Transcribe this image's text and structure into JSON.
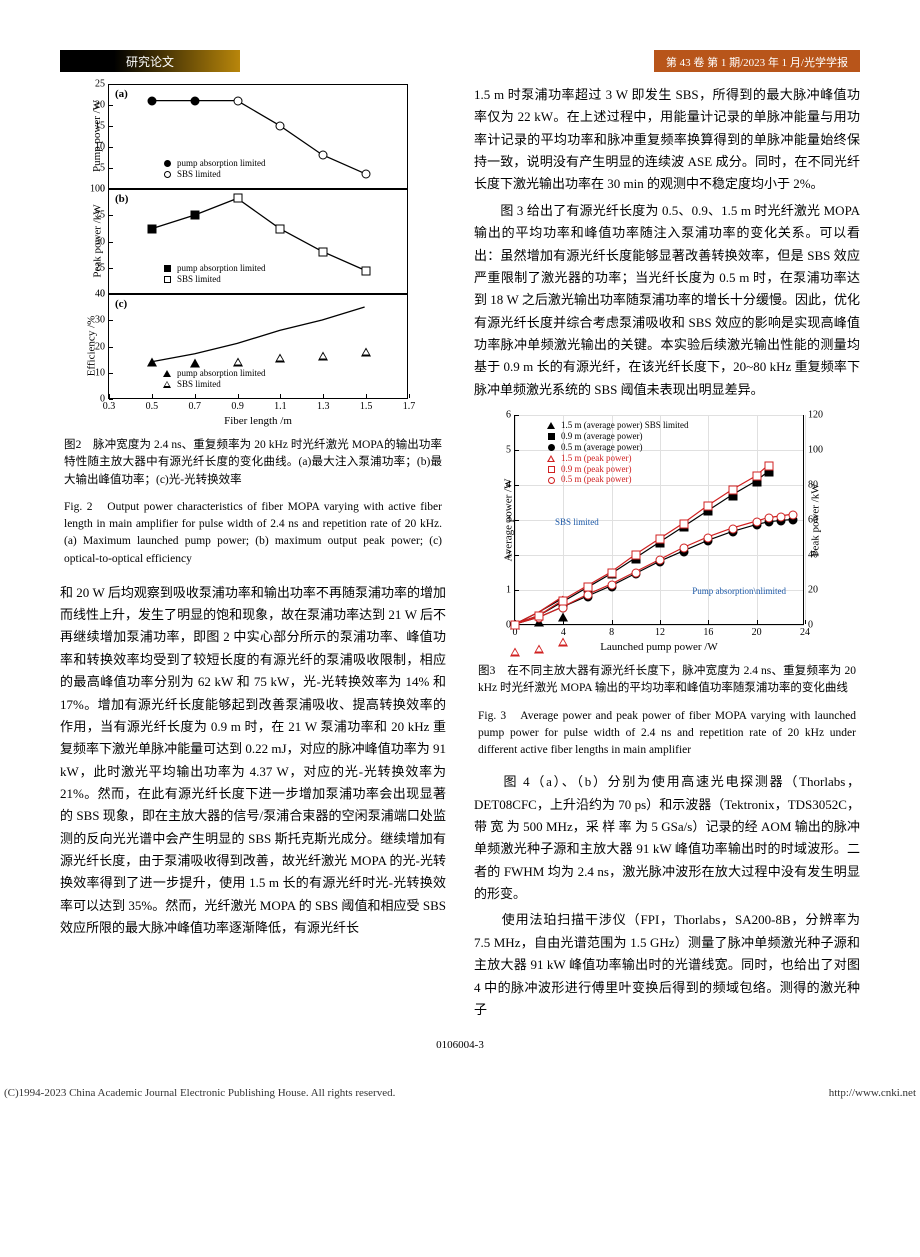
{
  "header": {
    "left": "研究论文",
    "right": "第 43 卷 第 1 期/2023 年 1 月/光学学报"
  },
  "fig2": {
    "xlabel": "Fiber length /m",
    "xlim": [
      0.3,
      1.7
    ],
    "xticks": [
      0.3,
      0.5,
      0.7,
      0.9,
      1.1,
      1.3,
      1.5,
      1.7
    ],
    "panelA": {
      "label": "(a)",
      "ylabel": "Pump power /W",
      "ylim": [
        0,
        25
      ],
      "yticks": [
        0,
        5,
        10,
        15,
        20,
        25
      ],
      "series1": {
        "label": "pump absorption limited",
        "type": "filled-circle",
        "x": [
          0.5,
          0.7
        ],
        "y": [
          21,
          21
        ]
      },
      "series2": {
        "label": "SBS limited",
        "type": "open-circle",
        "x": [
          0.9,
          1.1,
          1.3,
          1.5
        ],
        "y": [
          21,
          15,
          8,
          3.5
        ]
      }
    },
    "panelB": {
      "label": "(b)",
      "ylabel": "Peak power /kW",
      "ylim": [
        0,
        100
      ],
      "yticks": [
        0,
        25,
        50,
        75,
        100
      ],
      "series1": {
        "label": "pump absorption limited",
        "type": "filled-square",
        "x": [
          0.5,
          0.7
        ],
        "y": [
          62,
          75
        ]
      },
      "series2": {
        "label": "SBS limited",
        "type": "open-square",
        "x": [
          0.9,
          1.1,
          1.3,
          1.5
        ],
        "y": [
          91,
          62,
          40,
          22
        ]
      }
    },
    "panelC": {
      "label": "(c)",
      "ylabel": "Efficiency /%",
      "ylim": [
        0,
        40
      ],
      "yticks": [
        0,
        10,
        20,
        30,
        40
      ],
      "series1": {
        "label": "pump absorption limited",
        "type": "filled-triangle",
        "x": [
          0.5,
          0.7
        ],
        "y": [
          14,
          17
        ]
      },
      "series2": {
        "label": "SBS limited",
        "type": "open-triangle",
        "x": [
          0.9,
          1.1,
          1.3,
          1.5
        ],
        "y": [
          21,
          26,
          30,
          35
        ]
      }
    },
    "caption_cn": "图2　脉冲宽度为 2.4 ns、重复频率为 20 kHz 时光纤激光 MOPA的输出功率特性随主放大器中有源光纤长度的变化曲线。(a)最大注入泵浦功率；(b)最大输出峰值功率；(c)光-光转换效率",
    "caption_en": "Fig. 2　Output power characteristics of fiber MOPA varying with active fiber length in main amplifier for pulse width of 2.4 ns and repetition rate of 20 kHz. (a) Maximum launched pump power; (b) maximum output peak power; (c) optical-to-optical efficiency"
  },
  "fig3": {
    "xlabel": "Launched pump power /W",
    "ylabel": "Average power /W",
    "ylabel2": "Peak power /kW",
    "xlim": [
      0,
      24
    ],
    "xticks": [
      0,
      4,
      8,
      12,
      16,
      20,
      24
    ],
    "ylim": [
      0,
      6
    ],
    "yticks": [
      0,
      1,
      2,
      3,
      4,
      5,
      6
    ],
    "y2lim": [
      0,
      120
    ],
    "y2ticks": [
      0,
      20,
      40,
      60,
      80,
      100,
      120
    ],
    "legend": [
      {
        "label": "1.5 m (average power) SBS limited",
        "color": "#000",
        "marker": "tri-fill"
      },
      {
        "label": "0.9 m (average power)",
        "color": "#000",
        "marker": "sq-fill"
      },
      {
        "label": "0.5 m (average power)",
        "color": "#000",
        "marker": "circ-fill"
      },
      {
        "label": "1.5 m (peak power)",
        "color": "#d02020",
        "marker": "tri-open"
      },
      {
        "label": "0.9 m (peak power)",
        "color": "#d02020",
        "marker": "sq-open"
      },
      {
        "label": "0.5 m (peak power)",
        "color": "#d02020",
        "marker": "circ-open"
      }
    ],
    "annot": {
      "sbs": "SBS limited",
      "pump": "Pump absorption\\nlimited"
    },
    "data": {
      "x": [
        0,
        2,
        4,
        6,
        8,
        10,
        12,
        14,
        16,
        18,
        20,
        21,
        22,
        23
      ],
      "avg05": [
        0,
        0.2,
        0.5,
        0.8,
        1.1,
        1.45,
        1.8,
        2.1,
        2.4,
        2.65,
        2.85,
        2.93,
        2.97,
        3.0
      ],
      "avg09": [
        0,
        0.25,
        0.65,
        1.05,
        1.45,
        1.9,
        2.35,
        2.8,
        3.25,
        3.7,
        4.1,
        4.37
      ],
      "avg15": [
        0,
        0.35,
        0.75
      ],
      "peak05": [
        0,
        4,
        10,
        17,
        23,
        30,
        37,
        44,
        50,
        55,
        59,
        61,
        62,
        63
      ],
      "peak09": [
        0,
        5,
        14,
        22,
        30,
        40,
        49,
        58,
        68,
        77,
        85,
        91
      ],
      "peak15": [
        0,
        7,
        16
      ]
    },
    "caption_cn": "图3　在不同主放大器有源光纤长度下，脉冲宽度为 2.4 ns、重复频率为 20 kHz 时光纤激光 MOPA 输出的平均功率和峰值功率随泵浦功率的变化曲线",
    "caption_en": "Fig. 3　Average power and peak power of fiber MOPA varying with launched pump power for pulse width of 2.4 ns and repetition rate of 20 kHz under different active fiber lengths in main amplifier"
  },
  "col1_text": "和 20 W 后均观察到吸收泵浦功率和输出功率不再随泵浦功率的增加而线性上升，发生了明显的饱和现象，故在泵浦功率达到 21 W 后不再继续增加泵浦功率，即图 2 中实心部分所示的泵浦功率、峰值功率和转换效率均受到了较短长度的有源光纤的泵浦吸收限制，相应的最高峰值功率分别为 62 kW 和 75 kW，光-光转换效率为 14% 和 17%。增加有源光纤长度能够起到改善泵浦吸收、提高转换效率的作用，当有源光纤长度为 0.9 m 时，在 21 W 泵浦功率和 20 kHz 重复频率下激光单脉冲能量可达到 0.22 mJ，对应的脉冲峰值功率为 91 kW，此时激光平均输出功率为 4.37 W，对应的光-光转换效率为 21%。然而，在此有源光纤长度下进一步增加泵浦功率会出现显著的 SBS 现象，即在主放大器的信号/泵浦合束器的空闲泵浦端口处监测的反向光光谱中会产生明显的 SBS 斯托克斯光成分。继续增加有源光纤长度，由于泵浦吸收得到改善，故光纤激光 MOPA 的光-光转换效率得到了进一步提升，使用 1.5 m 长的有源光纤时光-光转换效率可以达到 35%。然而，光纤激光 MOPA 的 SBS 阈值和相应受 SBS 效应所限的最大脉冲峰值功率逐渐降低，有源光纤长",
  "col2_text1": "1.5 m 时泵浦功率超过 3 W 即发生 SBS，所得到的最大脉冲峰值功率仅为 22 kW。在上述过程中，用能量计记录的单脉冲能量与用功率计记录的平均功率和脉冲重复频率换算得到的单脉冲能量始终保持一致，说明没有产生明显的连续波 ASE 成分。同时，在不同光纤长度下激光输出功率在 30 min 的观测中不稳定度均小于 2%。",
  "col2_text2": "　　图 3 给出了有源光纤长度为 0.5、0.9、1.5 m 时光纤激光 MOPA 输出的平均功率和峰值功率随注入泵浦功率的变化关系。可以看出：虽然增加有源光纤长度能够显著改善转换效率，但是 SBS 效应严重限制了激光器的功率；当光纤长度为 0.5 m 时，在泵浦功率达到 18 W 之后激光输出功率随泵浦功率的增长十分缓慢。因此，优化有源光纤长度并综合考虑泵浦吸收和 SBS 效应的影响是实现高峰值功率脉冲单频激光输出的关键。本实验后续激光输出性能的测量均基于 0.9 m 长的有源光纤，在该光纤长度下，20~80 kHz 重复频率下脉冲单频激光系统的 SBS 阈值未表现出明显差异。",
  "col2_text3": "　　图 4（a）、（b）分别为使用高速光电探测器（Thorlabs，DET08CFC，上升沿约为 70 ps）和示波器（Tektronix，TDS3052C，带 宽 为 500 MHz，采 样 率 为 5 GSa/s）记录的经 AOM 输出的脉冲单频激光种子源和主放大器 91 kW 峰值功率输出时的时域波形。二者的 FWHM 均为 2.4 ns，激光脉冲波形在放大过程中没有发生明显的形变。",
  "col2_text4": "　　使用法珀扫描干涉仪（FPI，Thorlabs，SA200-8B，分辨率为 7.5 MHz，自由光谱范围为 1.5 GHz）测量了脉冲单频激光种子源和主放大器 91 kW 峰值功率输出时的光谱线宽。同时，也给出了对图 4 中的脉冲波形进行傅里叶变换后得到的频域包络。测得的激光种子",
  "page_number": "0106004-3",
  "footer": {
    "left": "(C)1994-2023 China Academic Journal Electronic Publishing House. All rights reserved.",
    "right": "http://www.cnki.net"
  }
}
